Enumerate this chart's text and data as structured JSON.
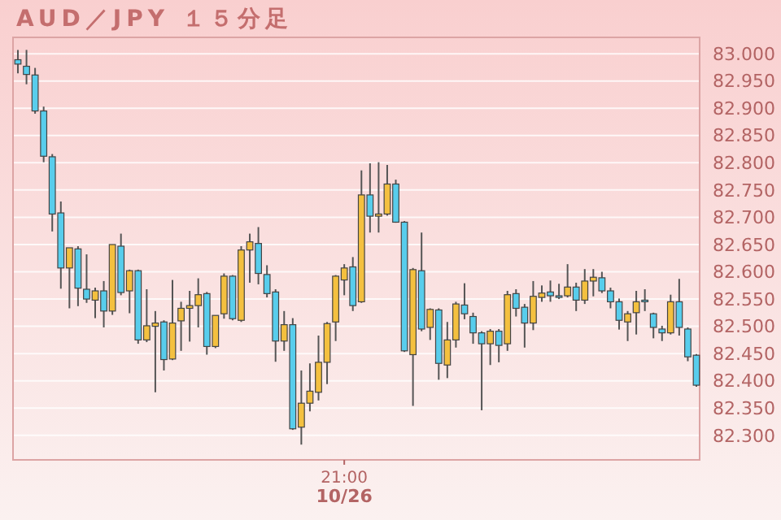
{
  "chart_data": {
    "type": "candlestick",
    "title": "AUD／JPY １５分足",
    "categories": [
      null,
      null,
      null,
      null,
      null,
      null,
      null,
      null,
      null,
      null,
      null,
      null,
      null,
      null,
      null,
      null,
      null,
      null,
      null,
      null,
      null,
      null,
      null,
      null,
      null,
      null,
      null,
      null,
      null,
      null,
      null,
      null,
      null,
      null,
      null,
      null,
      null,
      null,
      "21:00\n10/26",
      null,
      null,
      null,
      null,
      null,
      null,
      null,
      null,
      null,
      null,
      null,
      null,
      null,
      null,
      null,
      null,
      null,
      null,
      null,
      null,
      null,
      null,
      null,
      null,
      null,
      null,
      null,
      null,
      null,
      null,
      null,
      null,
      null,
      null,
      null,
      null,
      null,
      null,
      null,
      null,
      null
    ],
    "ohlc": [
      [
        82.989,
        83.007,
        82.964,
        82.981
      ],
      [
        82.977,
        83.007,
        82.944,
        82.962
      ],
      [
        82.961,
        82.974,
        82.89,
        82.895
      ],
      [
        82.895,
        82.903,
        82.801,
        82.812
      ],
      [
        82.811,
        82.816,
        82.674,
        82.706
      ],
      [
        82.708,
        82.729,
        82.569,
        82.607
      ],
      [
        82.607,
        82.644,
        82.533,
        82.644
      ],
      [
        82.642,
        82.647,
        82.537,
        82.57
      ],
      [
        82.568,
        82.632,
        82.543,
        82.55
      ],
      [
        82.548,
        82.571,
        82.515,
        82.565
      ],
      [
        82.565,
        82.583,
        82.498,
        82.528
      ],
      [
        82.528,
        82.65,
        82.521,
        82.65
      ],
      [
        82.647,
        82.67,
        82.557,
        82.562
      ],
      [
        82.565,
        82.604,
        82.524,
        82.602
      ],
      [
        82.602,
        82.604,
        82.468,
        82.475
      ],
      [
        82.475,
        82.568,
        82.471,
        82.501
      ],
      [
        82.5,
        82.528,
        82.379,
        82.506
      ],
      [
        82.508,
        82.511,
        82.419,
        82.439
      ],
      [
        82.44,
        82.585,
        82.438,
        82.506
      ],
      [
        82.51,
        82.545,
        82.455,
        82.533
      ],
      [
        82.533,
        82.565,
        82.472,
        82.538
      ],
      [
        82.538,
        82.588,
        82.498,
        82.558
      ],
      [
        82.56,
        82.563,
        82.448,
        82.463
      ],
      [
        82.463,
        82.52,
        82.46,
        82.52
      ],
      [
        82.523,
        82.597,
        82.514,
        82.592
      ],
      [
        82.592,
        82.594,
        82.511,
        82.514
      ],
      [
        82.511,
        82.647,
        82.508,
        82.64
      ],
      [
        82.64,
        82.67,
        82.58,
        82.655
      ],
      [
        82.652,
        82.682,
        82.577,
        82.597
      ],
      [
        82.595,
        82.612,
        82.553,
        82.56
      ],
      [
        82.563,
        82.568,
        82.435,
        82.473
      ],
      [
        82.473,
        82.528,
        82.455,
        82.503
      ],
      [
        82.503,
        82.515,
        82.31,
        82.312
      ],
      [
        82.315,
        82.419,
        82.283,
        82.359
      ],
      [
        82.359,
        82.432,
        82.344,
        82.381
      ],
      [
        82.379,
        82.483,
        82.364,
        82.434
      ],
      [
        82.434,
        82.508,
        82.394,
        82.505
      ],
      [
        82.508,
        82.594,
        82.473,
        82.592
      ],
      [
        82.585,
        82.614,
        82.557,
        82.607
      ],
      [
        82.609,
        82.627,
        82.528,
        82.538
      ],
      [
        82.545,
        82.786,
        82.543,
        82.741
      ],
      [
        82.741,
        82.799,
        82.672,
        82.702
      ],
      [
        82.702,
        82.801,
        82.672,
        82.706
      ],
      [
        82.706,
        82.796,
        82.703,
        82.761
      ],
      [
        82.761,
        82.769,
        82.69,
        82.691
      ],
      [
        82.691,
        82.693,
        82.453,
        82.455
      ],
      [
        82.448,
        82.607,
        82.354,
        82.604
      ],
      [
        82.602,
        82.672,
        82.491,
        82.495
      ],
      [
        82.498,
        82.533,
        82.475,
        82.531
      ],
      [
        82.53,
        82.533,
        82.402,
        82.432
      ],
      [
        82.429,
        82.508,
        82.405,
        82.475
      ],
      [
        82.475,
        82.545,
        82.461,
        82.541
      ],
      [
        82.539,
        82.579,
        82.513,
        82.523
      ],
      [
        82.518,
        82.525,
        82.468,
        82.488
      ],
      [
        82.488,
        82.491,
        82.346,
        82.468
      ],
      [
        82.468,
        82.495,
        82.429,
        82.491
      ],
      [
        82.491,
        82.495,
        82.434,
        82.465
      ],
      [
        82.468,
        82.565,
        82.455,
        82.558
      ],
      [
        82.56,
        82.568,
        82.518,
        82.533
      ],
      [
        82.535,
        82.541,
        82.461,
        82.506
      ],
      [
        82.506,
        82.583,
        82.493,
        82.555
      ],
      [
        82.553,
        82.575,
        82.545,
        82.561
      ],
      [
        82.563,
        82.584,
        82.545,
        82.556
      ],
      [
        82.556,
        82.578,
        82.55,
        82.554
      ],
      [
        82.556,
        82.614,
        82.553,
        82.572
      ],
      [
        82.572,
        82.58,
        82.528,
        82.548
      ],
      [
        82.548,
        82.605,
        82.541,
        82.583
      ],
      [
        82.583,
        82.605,
        82.555,
        82.59
      ],
      [
        82.589,
        82.6,
        82.561,
        82.565
      ],
      [
        82.565,
        82.571,
        82.533,
        82.545
      ],
      [
        82.545,
        82.551,
        82.494,
        82.511
      ],
      [
        82.508,
        82.528,
        82.473,
        82.523
      ],
      [
        82.525,
        82.565,
        82.485,
        82.545
      ],
      [
        82.548,
        82.568,
        82.528,
        82.547
      ],
      [
        82.523,
        82.525,
        82.478,
        82.498
      ],
      [
        82.495,
        82.501,
        82.473,
        82.488
      ],
      [
        82.488,
        82.558,
        82.485,
        82.545
      ],
      [
        82.545,
        82.587,
        82.483,
        82.498
      ],
      [
        82.495,
        82.498,
        82.436,
        82.444
      ],
      [
        82.447,
        82.449,
        82.389,
        82.392
      ]
    ],
    "colors": [
      "#58cdec",
      "#58cdec",
      "#58cdec",
      "#58cdec",
      "#58cdec",
      "#58cdec",
      "#f4c03f",
      "#58cdec",
      "#58cdec",
      "#f4c03f",
      "#58cdec",
      "#f4c03f",
      "#58cdec",
      "#f4c03f",
      "#58cdec",
      "#f4c03f",
      "#f4c03f",
      "#58cdec",
      "#f4c03f",
      "#f4c03f",
      "#f4c03f",
      "#f4c03f",
      "#58cdec",
      "#f4c03f",
      "#f4c03f",
      "#58cdec",
      "#f4c03f",
      "#f4c03f",
      "#58cdec",
      "#58cdec",
      "#58cdec",
      "#f4c03f",
      "#58cdec",
      "#f4c03f",
      "#f4c03f",
      "#f4c03f",
      "#f4c03f",
      "#f4c03f",
      "#f4c03f",
      "#58cdec",
      "#f4c03f",
      "#58cdec",
      "#f4c03f",
      "#f4c03f",
      "#58cdec",
      "#58cdec",
      "#f4c03f",
      "#58cdec",
      "#f4c03f",
      "#58cdec",
      "#f4c03f",
      "#f4c03f",
      "#58cdec",
      "#58cdec",
      "#58cdec",
      "#f4c03f",
      "#58cdec",
      "#f4c03f",
      "#58cdec",
      "#58cdec",
      "#f4c03f",
      "#f4c03f",
      "#58cdec",
      "#58cdec",
      "#f4c03f",
      "#58cdec",
      "#f4c03f",
      "#f4c03f",
      "#58cdec",
      "#58cdec",
      "#58cdec",
      "#f4c03f",
      "#f4c03f",
      "#58cdec",
      "#58cdec",
      "#58cdec",
      "#f4c03f",
      "#58cdec",
      "#58cdec",
      "#58cdec"
    ],
    "ylim": [
      82.255,
      83.03
    ],
    "yticks": [
      {
        "value": 82.3,
        "label": "82.300"
      },
      {
        "value": 82.35,
        "label": "82.350"
      },
      {
        "value": 82.4,
        "label": "82.400"
      },
      {
        "value": 82.45,
        "label": "82.450"
      },
      {
        "value": 82.5,
        "label": "82.500"
      },
      {
        "value": 82.55,
        "label": "82.550"
      },
      {
        "value": 82.6,
        "label": "82.600"
      },
      {
        "value": 82.65,
        "label": "82.650"
      },
      {
        "value": 82.7,
        "label": "82.700"
      },
      {
        "value": 82.75,
        "label": "82.750"
      },
      {
        "value": 82.8,
        "label": "82.800"
      },
      {
        "value": 82.85,
        "label": "82.850"
      },
      {
        "value": 82.9,
        "label": "82.900"
      },
      {
        "value": 82.95,
        "label": "82.950"
      },
      {
        "value": 83.0,
        "label": "83.000"
      }
    ],
    "grid": true
  }
}
